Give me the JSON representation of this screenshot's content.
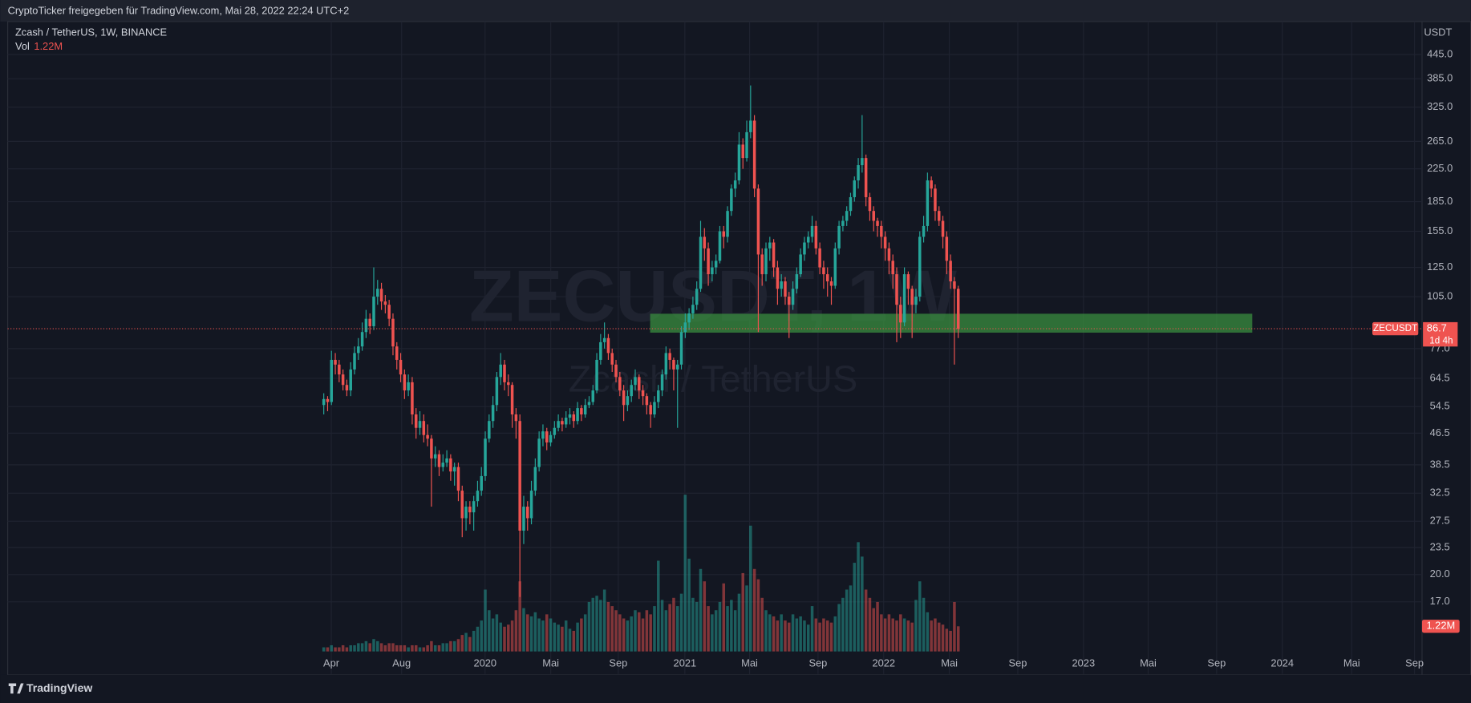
{
  "header": {
    "text": "CryptoTicker freigegeben für TradingView.com, Mai 28, 2022 22:24 UTC+2"
  },
  "chart_data": {
    "type": "candlestick",
    "title": "Zcash / TetherUS, 1W, BINANCE",
    "symbol": "ZECUSDT",
    "watermark": "ZECUSDT, 1W",
    "watermark_subtitle": "Zcash / TetherUS",
    "y_axis_label": "USDT",
    "volume_title": "Vol",
    "volume_value_label": "1.22M",
    "last_price_label": "86.7",
    "countdown": "1d 4h",
    "log_scale": true,
    "grid": true,
    "up_color": "#26a69a",
    "down_color": "#ef5350",
    "xtick_labels": [
      "Apr",
      "Aug",
      "2020",
      "Mai",
      "Sep",
      "2021",
      "Mai",
      "Sep",
      "2022",
      "Mai",
      "Sep",
      "2023",
      "Mai",
      "Sep",
      "2024",
      "Mai",
      "Sep"
    ],
    "ylim": [
      11.06,
      541.6
    ],
    "yticks": [
      {
        "value": 17,
        "label": "17.0"
      },
      {
        "value": 20,
        "label": "20.0"
      },
      23.5,
      27.5,
      32.5,
      38.5,
      46.5,
      54.5,
      64.5,
      {
        "value": 77,
        "label": "77.0"
      },
      {
        "value": 105,
        "label": "105.0"
      },
      {
        "value": 125,
        "label": "125.0"
      },
      {
        "value": 155,
        "label": "155.0"
      },
      {
        "value": 185,
        "label": "185.0"
      },
      {
        "value": 225,
        "label": "225.0"
      },
      {
        "value": 265,
        "label": "265.0"
      },
      {
        "value": 325,
        "label": "325.0"
      },
      {
        "value": 385,
        "label": "385.0"
      },
      {
        "value": 445,
        "label": "445.0"
      }
    ],
    "zone": {
      "low": 84.7,
      "high": 94.8,
      "color": "#3a8e3f"
    },
    "open": [
      55,
      57,
      56,
      72,
      70,
      66,
      62,
      60,
      68,
      75,
      78,
      85,
      92,
      88,
      105,
      110,
      102,
      100,
      92,
      78,
      72,
      66,
      60,
      63,
      52,
      48,
      50,
      46,
      45,
      40,
      41,
      38,
      39,
      40,
      37,
      38,
      33,
      28,
      30,
      29,
      31,
      33,
      36,
      45,
      50,
      55,
      65,
      70,
      63,
      62,
      52,
      50,
      26,
      30,
      28,
      33,
      38,
      45,
      47,
      44,
      46,
      48,
      50,
      49,
      51,
      52,
      50,
      54,
      52,
      55,
      56,
      60,
      72,
      80,
      82,
      75,
      70,
      65,
      60,
      55,
      58,
      62,
      65,
      60,
      58,
      55,
      52,
      56,
      60,
      66,
      75,
      72,
      68,
      70,
      85,
      90,
      95,
      100,
      110,
      150,
      140,
      120,
      125,
      130,
      155,
      150,
      175,
      200,
      210,
      260,
      240,
      280,
      300,
      200,
      135,
      120,
      140,
      145,
      125,
      110,
      115,
      105,
      100,
      110,
      120,
      135,
      145,
      150,
      160,
      140,
      125,
      120,
      115,
      112,
      140,
      160,
      165,
      175,
      190,
      210,
      230,
      240,
      190,
      175,
      165,
      160,
      150,
      140,
      130,
      120,
      100,
      90,
      120,
      110,
      100,
      105,
      150,
      160,
      210,
      200,
      175,
      165,
      150,
      130,
      115,
      110
    ],
    "high": [
      59,
      58,
      76,
      75,
      72,
      68,
      64,
      71,
      78,
      82,
      90,
      97,
      95,
      125,
      116,
      114,
      106,
      103,
      95,
      80,
      75,
      68,
      66,
      65,
      54,
      53,
      52,
      49,
      46,
      43,
      42,
      41,
      42,
      41,
      39,
      39,
      34,
      31,
      31,
      32,
      35,
      38,
      47,
      52,
      58,
      67,
      75,
      72,
      66,
      63,
      54,
      52,
      32,
      31,
      35,
      40,
      47,
      49,
      48,
      47,
      50,
      52,
      51,
      53,
      54,
      53,
      56,
      55,
      57,
      58,
      62,
      75,
      84,
      90,
      84,
      77,
      72,
      67,
      62,
      60,
      64,
      68,
      66,
      62,
      59,
      56,
      58,
      62,
      68,
      78,
      77,
      73,
      72,
      88,
      95,
      98,
      105,
      115,
      165,
      158,
      145,
      130,
      135,
      160,
      160,
      180,
      205,
      220,
      280,
      270,
      300,
      370,
      310,
      205,
      140,
      145,
      150,
      148,
      130,
      120,
      118,
      108,
      115,
      125,
      140,
      150,
      155,
      170,
      165,
      145,
      130,
      125,
      118,
      145,
      165,
      170,
      180,
      195,
      215,
      240,
      310,
      245,
      195,
      180,
      168,
      165,
      155,
      145,
      135,
      125,
      105,
      125,
      122,
      112,
      110,
      155,
      170,
      220,
      215,
      205,
      180,
      170,
      155,
      135,
      118,
      112
    ],
    "low": [
      52,
      53,
      55,
      66,
      63,
      60,
      58,
      58,
      66,
      72,
      76,
      82,
      84,
      86,
      100,
      97,
      95,
      88,
      74,
      68,
      63,
      57,
      58,
      49,
      45,
      46,
      44,
      43,
      30,
      38,
      36,
      37,
      38,
      35,
      34,
      31,
      25,
      26,
      27,
      26,
      30,
      32,
      35,
      44,
      48,
      53,
      62,
      60,
      58,
      48,
      45,
      17.5,
      24,
      26,
      27,
      32,
      37,
      43,
      42,
      43,
      45,
      47,
      47,
      48,
      49,
      48,
      49,
      50,
      51,
      54,
      55,
      59,
      70,
      77,
      72,
      67,
      63,
      58,
      50,
      53,
      56,
      60,
      57,
      55,
      52,
      48,
      51,
      54,
      58,
      64,
      68,
      60,
      48,
      68,
      82,
      86,
      92,
      97,
      108,
      130,
      112,
      115,
      120,
      128,
      140,
      145,
      170,
      190,
      205,
      225,
      235,
      270,
      190,
      85,
      112,
      115,
      130,
      118,
      100,
      105,
      100,
      82,
      97,
      107,
      118,
      130,
      140,
      145,
      135,
      120,
      110,
      105,
      100,
      110,
      135,
      155,
      160,
      170,
      185,
      200,
      220,
      180,
      165,
      155,
      150,
      140,
      130,
      120,
      110,
      80,
      82,
      88,
      100,
      82,
      95,
      102,
      145,
      155,
      190,
      165,
      160,
      140,
      120,
      110,
      70,
      82
    ],
    "close": [
      57,
      56,
      72,
      70,
      66,
      62,
      60,
      68,
      75,
      78,
      85,
      92,
      88,
      105,
      110,
      102,
      100,
      92,
      78,
      72,
      66,
      60,
      63,
      52,
      48,
      50,
      46,
      45,
      40,
      41,
      38,
      39,
      40,
      37,
      38,
      33,
      28,
      30,
      29,
      31,
      33,
      36,
      45,
      50,
      55,
      65,
      70,
      63,
      62,
      52,
      50,
      26,
      30,
      28,
      33,
      38,
      45,
      47,
      44,
      46,
      48,
      50,
      49,
      51,
      52,
      50,
      54,
      52,
      55,
      56,
      60,
      72,
      80,
      82,
      75,
      70,
      65,
      60,
      55,
      58,
      62,
      65,
      60,
      58,
      55,
      52,
      56,
      60,
      66,
      75,
      72,
      68,
      70,
      85,
      90,
      95,
      100,
      110,
      150,
      140,
      120,
      125,
      130,
      155,
      150,
      175,
      200,
      210,
      260,
      240,
      280,
      300,
      200,
      135,
      120,
      140,
      145,
      125,
      110,
      115,
      105,
      100,
      110,
      120,
      135,
      145,
      150,
      160,
      140,
      125,
      120,
      115,
      112,
      140,
      160,
      165,
      175,
      190,
      210,
      230,
      240,
      190,
      175,
      165,
      160,
      150,
      140,
      130,
      120,
      100,
      90,
      120,
      110,
      100,
      105,
      150,
      160,
      210,
      200,
      175,
      165,
      150,
      130,
      115,
      110,
      86.7
    ],
    "volume": [
      0.2,
      0.2,
      0.3,
      0.2,
      0.2,
      0.3,
      0.2,
      0.3,
      0.3,
      0.4,
      0.4,
      0.5,
      0.4,
      0.6,
      0.5,
      0.4,
      0.3,
      0.4,
      0.4,
      0.3,
      0.3,
      0.3,
      0.2,
      0.3,
      0.3,
      0.2,
      0.2,
      0.3,
      0.5,
      0.3,
      0.3,
      0.4,
      0.4,
      0.5,
      0.5,
      0.6,
      0.8,
      0.9,
      0.7,
      1.0,
      1.2,
      1.5,
      3.0,
      2.0,
      1.6,
      1.8,
      1.4,
      1.2,
      1.3,
      1.5,
      2.0,
      3.4,
      2.1,
      1.8,
      1.7,
      1.9,
      1.6,
      1.5,
      1.8,
      1.6,
      1.4,
      1.3,
      1.2,
      1.5,
      1.1,
      1.0,
      1.4,
      1.6,
      1.8,
      2.4,
      2.6,
      2.7,
      2.5,
      3.0,
      2.4,
      2.2,
      2.0,
      1.8,
      1.6,
      1.5,
      1.7,
      2.0,
      1.9,
      1.6,
      2.0,
      1.8,
      2.2,
      4.4,
      2.5,
      2.0,
      2.3,
      2.6,
      2.2,
      2.8,
      7.6,
      4.5,
      2.6,
      2.4,
      4.0,
      3.4,
      2.2,
      1.8,
      2.0,
      2.4,
      3.3,
      2.2,
      2.5,
      2.0,
      2.8,
      3.8,
      3.2,
      6.1,
      4.0,
      3.5,
      2.6,
      2.0,
      1.8,
      1.7,
      1.5,
      1.8,
      1.5,
      1.4,
      1.8,
      1.6,
      1.7,
      1.5,
      1.3,
      2.2,
      1.6,
      1.4,
      1.6,
      1.5,
      1.4,
      1.7,
      2.3,
      2.6,
      3.0,
      3.2,
      4.3,
      5.3,
      4.6,
      3.0,
      2.6,
      2.1,
      2.4,
      1.8,
      1.6,
      1.8,
      1.6,
      1.5,
      1.8,
      1.6,
      1.5,
      1.4,
      2.5,
      3.4,
      2.6,
      1.9,
      1.5,
      1.6,
      1.4,
      1.3,
      1.1,
      1.0,
      2.4,
      1.22
    ]
  },
  "footer": {
    "brand": "TradingView"
  }
}
